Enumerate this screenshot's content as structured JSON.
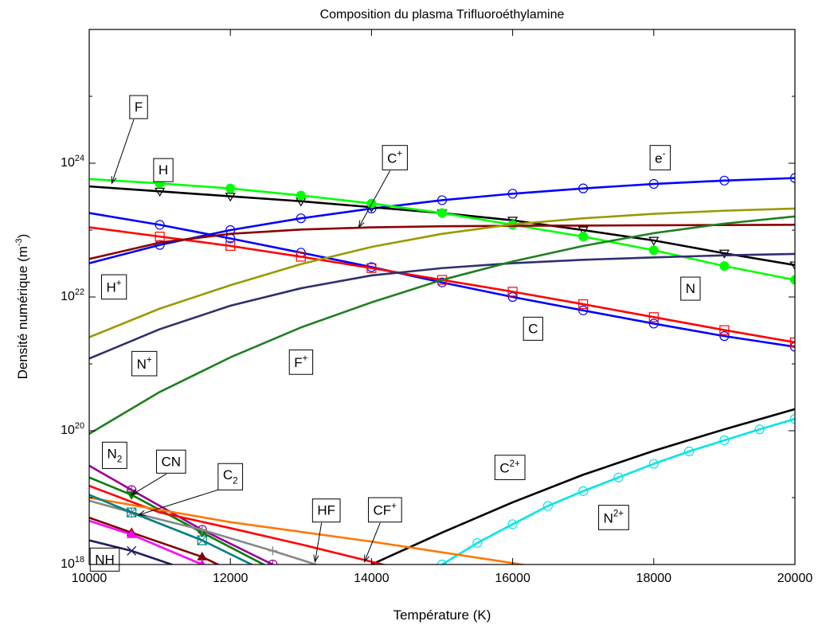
{
  "chart_data": {
    "type": "line",
    "title": "Composition du plasma Trifluoroéthylamine",
    "xlabel": "Température (K)",
    "ylabel": "Densité numérique (m^-3)",
    "xlim": [
      10000,
      20000
    ],
    "ylim": [
      1e+18,
      1e+26
    ],
    "yscale": "log",
    "grid": false,
    "x_ticks": [
      10000,
      12000,
      14000,
      16000,
      18000,
      20000
    ],
    "x_tick_labels": [
      "10000",
      "12000",
      "14000",
      "16000",
      "18000",
      "20000"
    ],
    "y_ticks": [
      1e+18,
      1e+20,
      1e+22,
      1e+24
    ],
    "y_tick_labels": [
      {
        "base": "10",
        "exp": "18"
      },
      {
        "base": "10",
        "exp": "20"
      },
      {
        "base": "10",
        "exp": "22"
      },
      {
        "base": "10",
        "exp": "24"
      }
    ],
    "series": [
      {
        "name": "e-",
        "color": "#0000ff",
        "marker": "circle-open",
        "markerColor": "#0000ff",
        "x": [
          10000,
          11000,
          12000,
          13000,
          14000,
          15000,
          16000,
          17000,
          18000,
          19000,
          20000
        ],
        "y": [
          3.2e+22,
          6e+22,
          1e+23,
          1.5e+23,
          2.1e+23,
          2.8e+23,
          3.5e+23,
          4.2e+23,
          4.9e+23,
          5.5e+23,
          6e+23
        ]
      },
      {
        "name": "F",
        "color": "#000000",
        "marker": "triangle-down-open",
        "markerColor": "#000000",
        "x": [
          10000,
          11000,
          12000,
          13000,
          14000,
          15000,
          16000,
          17000,
          18000,
          19000,
          20000
        ],
        "y": [
          4.5e+23,
          3.8e+23,
          3.2e+23,
          2.7e+23,
          2.2e+23,
          1.8e+23,
          1.4e+23,
          1e+23,
          7e+22,
          4.5e+22,
          3e+22
        ]
      },
      {
        "name": "H",
        "color": "#00ff00",
        "marker": "circle-filled",
        "markerColor": "#00ff00",
        "x": [
          10000,
          11000,
          12000,
          13000,
          14000,
          15000,
          16000,
          17000,
          18000,
          19000,
          20000
        ],
        "y": [
          5.8e+23,
          5e+23,
          4.2e+23,
          3.3e+23,
          2.5e+23,
          1.8e+23,
          1.2e+23,
          8e+22,
          5e+22,
          2.9e+22,
          1.8e+22
        ]
      },
      {
        "name": "C",
        "color": "#0000ff",
        "marker": "circle-open",
        "markerColor": "#0000ff",
        "x": [
          10000,
          11000,
          12000,
          13000,
          14000,
          15000,
          16000,
          17000,
          18000,
          19000,
          20000
        ],
        "y": [
          1.8e+23,
          1.2e+23,
          7.5e+22,
          4.6e+22,
          2.8e+22,
          1.65e+22,
          1e+22,
          6.3e+21,
          4e+21,
          2.6e+21,
          1.8e+21
        ]
      },
      {
        "name": "N",
        "color": "#ff0000",
        "marker": "square-open",
        "markerColor": "#ff0000",
        "x": [
          10000,
          11000,
          12000,
          13000,
          14000,
          15000,
          16000,
          17000,
          18000,
          19000,
          20000
        ],
        "y": [
          1.1e+23,
          8e+22,
          5.8e+22,
          4e+22,
          2.7e+22,
          1.8e+22,
          1.2e+22,
          7.8e+21,
          5e+21,
          3.2e+21,
          2.1e+21
        ]
      },
      {
        "name": "C+",
        "color": "#8b0000",
        "marker": "none",
        "markerColor": "#8b0000",
        "x": [
          10000,
          11000,
          12000,
          13000,
          14000,
          15000,
          16000,
          17000,
          18000,
          19000,
          20000
        ],
        "y": [
          3.7e+22,
          6.5e+22,
          8.8e+22,
          1.02e+23,
          1.1e+23,
          1.14e+23,
          1.16e+23,
          1.17e+23,
          1.18e+23,
          1.19e+23,
          1.2e+23
        ]
      },
      {
        "name": "H+",
        "color": "#999900",
        "marker": "none",
        "markerColor": "#999900",
        "x": [
          10000,
          11000,
          12000,
          13000,
          14000,
          15000,
          16000,
          17000,
          18000,
          19000,
          20000
        ],
        "y": [
          2.5e+21,
          6.7e+21,
          1.5e+22,
          3.1e+22,
          5.6e+22,
          8.8e+22,
          1.22e+23,
          1.5e+23,
          1.75e+23,
          1.95e+23,
          2.1e+23
        ]
      },
      {
        "name": "N+",
        "color": "#2f2f6f",
        "marker": "none",
        "markerColor": "#2f2f6f",
        "x": [
          10000,
          11000,
          12000,
          13000,
          14000,
          15000,
          16000,
          17000,
          18000,
          19000,
          20000
        ],
        "y": [
          1.2e+21,
          3.3e+21,
          7.4e+21,
          1.35e+22,
          2.1e+22,
          2.7e+22,
          3.2e+22,
          3.6e+22,
          3.9e+22,
          4.2e+22,
          4.4e+22
        ]
      },
      {
        "name": "F+",
        "color": "#1f7f1f",
        "marker": "none",
        "markerColor": "#1f7f1f",
        "x": [
          10000,
          11000,
          12000,
          13000,
          14000,
          15000,
          16000,
          17000,
          18000,
          19000,
          20000
        ],
        "y": [
          9e+19,
          3.8e+20,
          1.25e+21,
          3.5e+21,
          8.3e+21,
          1.8e+22,
          3.4e+22,
          5.8e+22,
          9e+22,
          1.25e+23,
          1.6e+23
        ]
      },
      {
        "name": "C2+",
        "color": "#000000",
        "marker": "none",
        "markerColor": "#000000",
        "x": [
          14000,
          15000,
          16000,
          17000,
          18000,
          19000,
          20000
        ],
        "y": [
          1e+18,
          3e+18,
          8.5e+18,
          2.2e+19,
          5e+19,
          1.05e+20,
          2.1e+20
        ]
      },
      {
        "name": "N2+",
        "color": "#00e5e5",
        "marker": "circle-open",
        "markerColor": "#00e5e5",
        "x": [
          15000,
          15500,
          16000,
          16500,
          17000,
          17500,
          18000,
          18500,
          19000,
          19500,
          20000
        ],
        "y": [
          1e+18,
          2.1e+18,
          4e+18,
          7.5e+18,
          1.25e+19,
          2e+19,
          3.2e+19,
          4.9e+19,
          7.2e+19,
          1.05e+20,
          1.5e+20
        ]
      },
      {
        "name": "N2",
        "color": "#990099",
        "marker": "circle-open-plus",
        "markerColor": "#990099",
        "x": [
          10000,
          10600,
          11600,
          12600
        ],
        "y": [
          3e+19,
          1.3e+19,
          3.3e+18,
          1e+18
        ]
      },
      {
        "name": "CN",
        "color": "#007f00",
        "marker": "triangle-down-filled",
        "markerColor": "#007f00",
        "x": [
          10000,
          10600,
          11600,
          12600
        ],
        "y": [
          2e+19,
          1.1e+19,
          3e+18,
          8.5e+17
        ]
      },
      {
        "name": "HF",
        "color": "#ff0000",
        "marker": "none",
        "markerColor": "#ff0000",
        "x": [
          10000,
          11000,
          12000,
          13000,
          14000,
          15000
        ],
        "y": [
          1.5e+19,
          6e+18,
          3.5e+18,
          2e+18,
          1.1e+18,
          6e+17
        ]
      },
      {
        "name": "CF+",
        "color": "#ff7700",
        "marker": "none",
        "markerColor": "#ff7700",
        "x": [
          10000,
          12000,
          14000,
          16000,
          17000
        ],
        "y": [
          1e+19,
          4.3e+18,
          2.2e+18,
          1.05e+18,
          7e+17
        ]
      },
      {
        "name": "C2",
        "color": "#888888",
        "marker": "plus",
        "markerColor": "#888888",
        "x": [
          10000,
          10600,
          11600,
          12600,
          13500
        ],
        "y": [
          9e+18,
          6e+18,
          3.3e+18,
          1.6e+18,
          8e+17
        ]
      },
      {
        "name": "",
        "color": "#007f7f",
        "marker": "square-x",
        "markerColor": "#007f7f",
        "x": [
          10000,
          10600,
          11600,
          12600
        ],
        "y": [
          1.1e+19,
          6e+18,
          2.3e+18,
          7e+17
        ]
      },
      {
        "name": "",
        "color": "#7f0000",
        "marker": "triangle-up-filled",
        "markerColor": "#7f0000",
        "x": [
          10000,
          10600,
          11600,
          12600
        ],
        "y": [
          5e+18,
          3e+18,
          1.3e+18,
          4e+17
        ]
      },
      {
        "name": "",
        "color": "#ff00ff",
        "marker": "triangle-up-filled",
        "markerColor": "#ff00ff",
        "x": [
          10000,
          10600,
          11600
        ],
        "y": [
          4.5e+18,
          2.8e+18,
          1e+18
        ]
      },
      {
        "name": "NH",
        "color": "#1f1f5f",
        "marker": "x",
        "markerColor": "#1f1f5f",
        "x": [
          10000,
          10600,
          11600
        ],
        "y": [
          2.3e+18,
          1.6e+18,
          7e+17
        ]
      }
    ],
    "annotations": [
      {
        "text": "F",
        "sup": "",
        "sub": "",
        "x": 10700,
        "y": 7e+24,
        "arrow_to": [
          10320,
          5e+23
        ]
      },
      {
        "text": "H",
        "sup": "",
        "sub": "",
        "x": 11050,
        "y": 8e+23,
        "arrow_to": null
      },
      {
        "text": "C",
        "sup": "+",
        "sub": "",
        "x": 14330,
        "y": 1.2e+24,
        "arrow_to": [
          13820,
          1.1e+23
        ]
      },
      {
        "text": "e",
        "sup": "-",
        "sub": "",
        "x": 18090,
        "y": 1.2e+24,
        "arrow_to": null
      },
      {
        "text": "H",
        "sup": "+",
        "sub": "",
        "x": 10350,
        "y": 1.4e+22,
        "arrow_to": null
      },
      {
        "text": "N",
        "sup": "",
        "sub": "",
        "x": 18520,
        "y": 1.35e+22,
        "arrow_to": null
      },
      {
        "text": "C",
        "sup": "",
        "sub": "",
        "x": 16290,
        "y": 3.4e+21,
        "arrow_to": null
      },
      {
        "text": "N",
        "sup": "+",
        "sub": "",
        "x": 10780,
        "y": 1e+21,
        "arrow_to": null
      },
      {
        "text": "F",
        "sup": "+",
        "sub": "",
        "x": 13000,
        "y": 1.05e+21,
        "arrow_to": null
      },
      {
        "text": "N",
        "sup": "",
        "sub": "2",
        "x": 10360,
        "y": 4.6e+19,
        "arrow_to": null
      },
      {
        "text": "CN",
        "sup": "",
        "sub": "",
        "x": 11160,
        "y": 3.5e+19,
        "arrow_to": [
          10600,
          1.1e+19
        ]
      },
      {
        "text": "C",
        "sup": "",
        "sub": "2",
        "x": 12000,
        "y": 2.2e+19,
        "arrow_to": [
          10700,
          5.5e+18
        ]
      },
      {
        "text": "C",
        "sup": "2+",
        "sub": "",
        "x": 15960,
        "y": 2.8e+19,
        "arrow_to": null
      },
      {
        "text": "HF",
        "sup": "",
        "sub": "",
        "x": 13360,
        "y": 6.5e+18,
        "arrow_to": [
          13200,
          1.1e+18
        ]
      },
      {
        "text": "CF",
        "sup": "+",
        "sub": "",
        "x": 14190,
        "y": 6.5e+18,
        "arrow_to": [
          13900,
          1.1e+18
        ]
      },
      {
        "text": "N",
        "sup": "2+",
        "sub": "",
        "x": 17430,
        "y": 5e+18,
        "arrow_to": null
      },
      {
        "text": "NH",
        "sup": "",
        "sub": "",
        "x": 10220,
        "y": 1.2e+18,
        "arrow_to": null
      }
    ]
  }
}
